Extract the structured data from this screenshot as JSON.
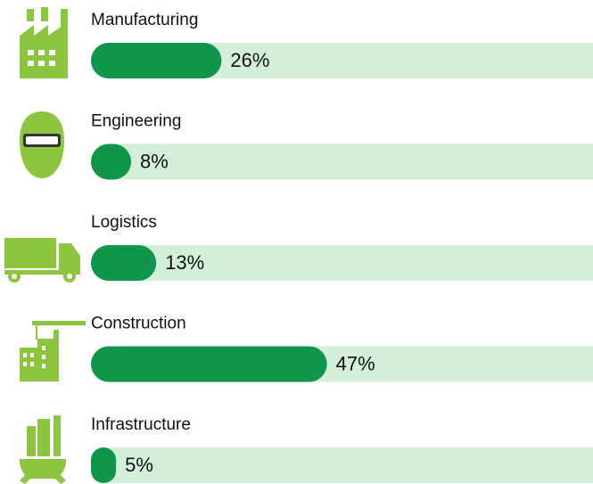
{
  "chart_data": {
    "type": "bar",
    "orientation": "horizontal",
    "categories": [
      "Manufacturing",
      "Engineering",
      "Logistics",
      "Construction",
      "Infrastructure"
    ],
    "values": [
      26,
      8,
      13,
      47,
      5
    ],
    "value_labels": [
      "26%",
      "8%",
      "13%",
      "47%",
      "5%"
    ],
    "xlim": [
      0,
      100
    ],
    "color": "#10964a",
    "track_color": "#d4efd9"
  }
}
